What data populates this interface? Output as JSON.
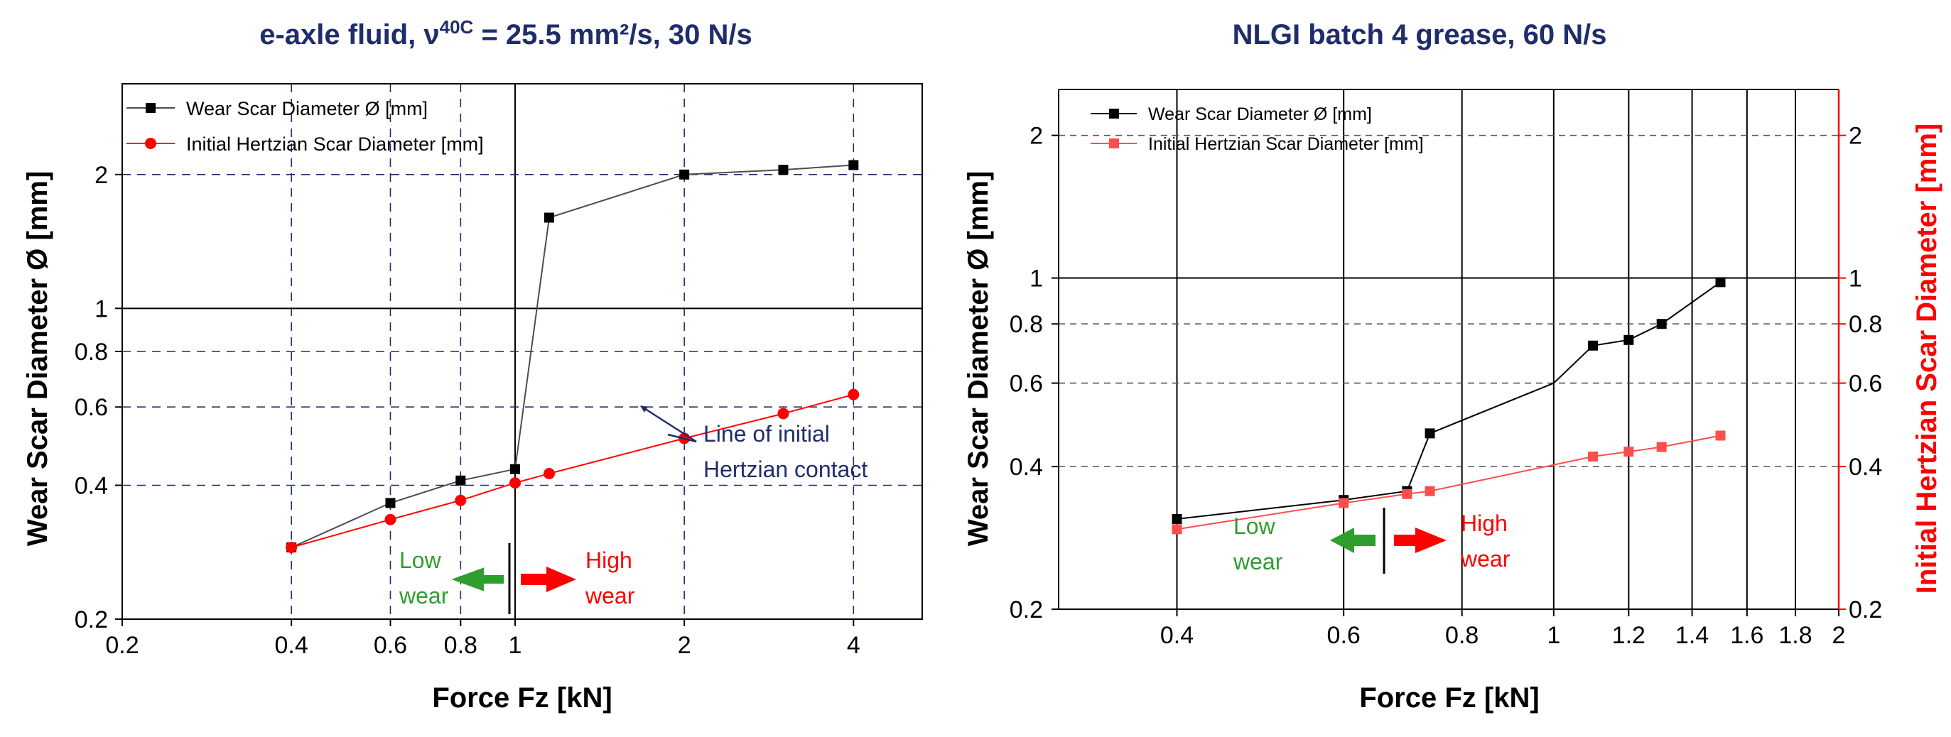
{
  "chart_data": [
    {
      "type": "line",
      "scale": "log-log",
      "title": "e-axle fluid, ν",
      "title_sup": "40C",
      "title_rest": " = 25.5 mm²/s, 30 N/s",
      "xlabel": "Force Fz [kN]",
      "ylabel": "Wear Scar Diameter Ø [mm]",
      "xlim": [
        0.2,
        5.3
      ],
      "ylim": [
        0.2,
        3.2
      ],
      "xticks": [
        0.2,
        0.4,
        0.6,
        0.8,
        1,
        2,
        4
      ],
      "xtick_labels": [
        "0.2",
        "0.4",
        "0.6",
        "0.8",
        "1",
        "2",
        "4"
      ],
      "yticks": [
        0.2,
        0.4,
        0.6,
        0.8,
        1,
        2
      ],
      "ytick_labels": [
        "0.2",
        "0.4",
        "0.6",
        "0.8",
        "1",
        "2"
      ],
      "grid": "dashed",
      "legend_position": "top-left",
      "series": [
        {
          "name": "Wear Scar Diameter Ø [mm]",
          "color": "#4d4d4d",
          "marker": "square",
          "x": [
            0.4,
            0.6,
            0.8,
            1.0,
            1.15,
            2.0,
            3.0,
            4.0
          ],
          "y": [
            0.29,
            0.365,
            0.41,
            0.435,
            1.6,
            2.0,
            2.05,
            2.1
          ]
        },
        {
          "name": "Initial Hertzian Scar Diameter [mm]",
          "color": "#ff0000",
          "marker": "circle",
          "x": [
            0.4,
            0.6,
            0.8,
            1.0,
            1.15,
            2.0,
            3.0,
            4.0
          ],
          "y": [
            0.29,
            0.335,
            0.37,
            0.405,
            0.425,
            0.51,
            0.58,
            0.64
          ]
        }
      ],
      "annotations": {
        "line_label": [
          "Line of initial",
          "Hertzian contact"
        ],
        "low_wear": [
          "Low",
          "wear"
        ],
        "high_wear": [
          "High",
          "wear"
        ]
      }
    },
    {
      "type": "line",
      "scale": "log-log",
      "title": "NLGI batch 4 grease, 60 N/s",
      "xlabel": "Force Fz [kN]",
      "ylabel": "Wear Scar Diameter Ø [mm]",
      "y2label": "Initial Hertzian Scar Diameter [mm]",
      "xlim": [
        0.3,
        2.0
      ],
      "ylim": [
        0.2,
        2.5
      ],
      "xticks": [
        0.4,
        0.6,
        0.8,
        1,
        1.2,
        1.4,
        1.6,
        1.8,
        2
      ],
      "xtick_labels": [
        "0.4",
        "0.6",
        "0.8",
        "1",
        "1.2",
        "1.4",
        "1.6",
        "1.8",
        "2"
      ],
      "yticks": [
        0.2,
        0.4,
        0.6,
        0.8,
        1,
        2
      ],
      "ytick_labels": [
        "0.2",
        "0.4",
        "0.6",
        "0.8",
        "1",
        "2"
      ],
      "grid": "dashed",
      "legend_position": "top-left",
      "series": [
        {
          "name": "Wear Scar Diameter Ø [mm]",
          "color": "#000000",
          "marker": "square",
          "x": [
            0.4,
            0.6,
            0.7,
            0.74,
            1.0,
            1.1,
            1.2,
            1.3,
            1.5
          ],
          "y": [
            0.31,
            0.34,
            0.355,
            0.47,
            0.6,
            0.72,
            0.74,
            0.8,
            0.98
          ]
        },
        {
          "name": "Initial Hertzian Scar Diameter [mm]",
          "color": "#ff4d4d",
          "marker": "square",
          "x": [
            0.4,
            0.6,
            0.7,
            0.74,
            1.1,
            1.2,
            1.3,
            1.5
          ],
          "y": [
            0.295,
            0.335,
            0.35,
            0.355,
            0.42,
            0.43,
            0.44,
            0.465
          ]
        }
      ],
      "annotations": {
        "low_wear": [
          "Low",
          "wear"
        ],
        "high_wear": [
          "High",
          "wear"
        ]
      }
    }
  ]
}
